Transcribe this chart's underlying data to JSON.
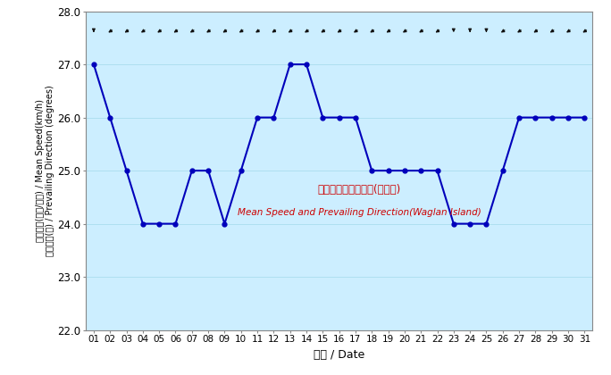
{
  "xlabel": "日期 / Date",
  "ylabel_line1": "平均風速(公里/小時) / Mean Speed(km/h)",
  "ylabel_line2": "盛行風向(度) / Prevailing Direction (degrees)",
  "annotation_zh": "平均風速及盛行風向(橫瀉島)",
  "annotation_en": "Mean Speed and Prevailing Direction(Waglan Island)",
  "background_color": "#cceeff",
  "line_color": "#0000bb",
  "arrow_color": "#111111",
  "annotation_zh_color": "#cc0000",
  "annotation_en_color": "#cc0000",
  "ylim": [
    22.0,
    28.0
  ],
  "yticks": [
    22.0,
    23.0,
    24.0,
    25.0,
    26.0,
    27.0,
    28.0
  ],
  "days": [
    1,
    2,
    3,
    4,
    5,
    6,
    7,
    8,
    9,
    10,
    11,
    12,
    13,
    14,
    15,
    16,
    17,
    18,
    19,
    20,
    21,
    22,
    23,
    24,
    25,
    26,
    27,
    28,
    29,
    30,
    31
  ],
  "wind_speed": [
    27.0,
    26.0,
    25.0,
    24.0,
    24.0,
    24.0,
    25.0,
    25.0,
    24.0,
    25.0,
    26.0,
    26.0,
    27.0,
    27.0,
    26.0,
    26.0,
    26.0,
    25.0,
    25.0,
    25.0,
    25.0,
    25.0,
    24.0,
    24.0,
    24.0,
    25.0,
    26.0,
    26.0,
    26.0,
    26.0,
    26.0
  ],
  "arrow_directions_deg": [
    180,
    225,
    225,
    225,
    225,
    225,
    225,
    225,
    225,
    225,
    225,
    225,
    225,
    225,
    225,
    225,
    225,
    225,
    225,
    225,
    225,
    225,
    180,
    180,
    180,
    225,
    225,
    225,
    225,
    225,
    225
  ]
}
